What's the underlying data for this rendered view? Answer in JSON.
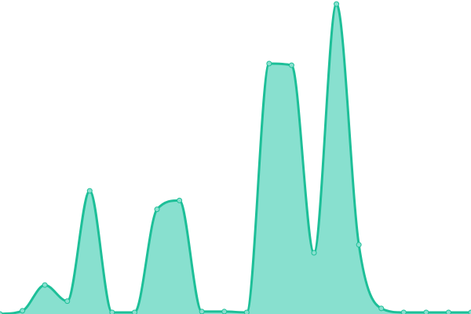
{
  "chart_data": {
    "type": "area",
    "x": [
      0,
      1,
      2,
      3,
      4,
      5,
      6,
      7,
      8,
      9,
      10,
      11,
      12,
      13,
      14,
      15,
      16,
      17,
      18,
      19,
      20,
      21
    ],
    "values": [
      0,
      4,
      36,
      16,
      153,
      2,
      2,
      130,
      141,
      3,
      3,
      2,
      311,
      309,
      76,
      385,
      86,
      7,
      2,
      2,
      2,
      2
    ],
    "ylim": [
      0,
      390
    ],
    "xlim": [
      0,
      21
    ],
    "grid": false,
    "axes": false,
    "smooth": true,
    "colors": {
      "line": "#1dbf98",
      "fill": "#88e0cf",
      "point": "#88e0cf"
    }
  }
}
